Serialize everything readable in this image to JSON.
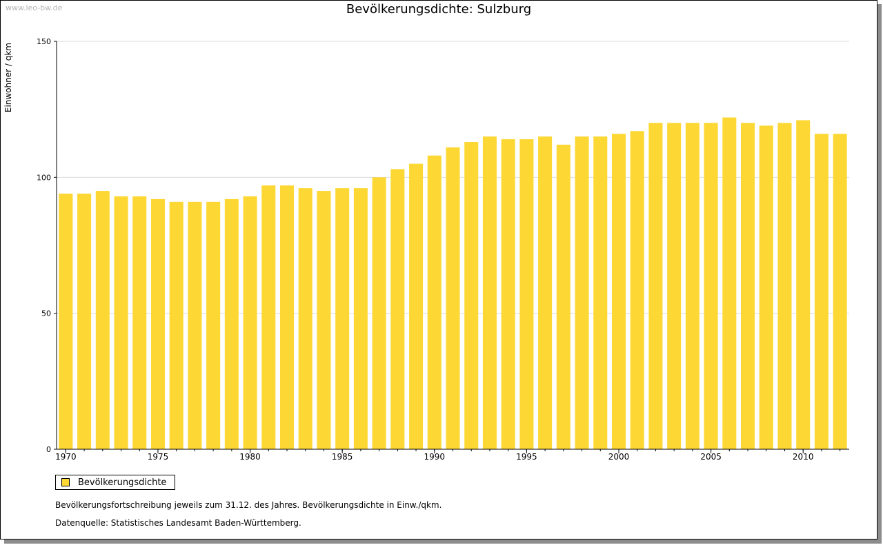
{
  "page": {
    "watermark": "www.leo-bw.de",
    "legend_label": "Bevölkerungsdichte",
    "note_1": "Bevölkerungsfortschreibung jeweils zum 31.12. des Jahres. Bevölkerungsdichte in Einw./qkm.",
    "note_2": "Datenquelle: Statistisches Landesamt Baden-Württemberg."
  },
  "colors": {
    "bar": "#fdd835",
    "grid": "#d9d9d9",
    "axis": "#000000"
  },
  "chart_data": {
    "type": "bar",
    "title": "Bevölkerungsdichte: Sulzburg",
    "ylabel": "Einwohner / qkm",
    "xlabel": "",
    "ylim": [
      0,
      150
    ],
    "yticks": [
      0,
      50,
      100,
      150
    ],
    "xtick_labels": [
      "1970",
      "1975",
      "1980",
      "1985",
      "1990",
      "1995",
      "2000",
      "2005",
      "2010"
    ],
    "grid": true,
    "legend_position": "bottom-left",
    "categories": [
      1970,
      1971,
      1972,
      1973,
      1974,
      1975,
      1976,
      1977,
      1978,
      1979,
      1980,
      1981,
      1982,
      1983,
      1984,
      1985,
      1986,
      1987,
      1988,
      1989,
      1990,
      1991,
      1992,
      1993,
      1994,
      1995,
      1996,
      1997,
      1998,
      1999,
      2000,
      2001,
      2002,
      2003,
      2004,
      2005,
      2006,
      2007,
      2008,
      2009,
      2010,
      2011,
      2012
    ],
    "series": [
      {
        "name": "Bevölkerungsdichte",
        "values": [
          94,
          94,
          95,
          93,
          93,
          92,
          91,
          91,
          91,
          92,
          93,
          97,
          97,
          96,
          95,
          96,
          96,
          100,
          103,
          105,
          108,
          111,
          113,
          115,
          114,
          114,
          115,
          112,
          115,
          115,
          116,
          117,
          120,
          120,
          120,
          120,
          122,
          120,
          119,
          120,
          121,
          116,
          116
        ]
      }
    ]
  }
}
